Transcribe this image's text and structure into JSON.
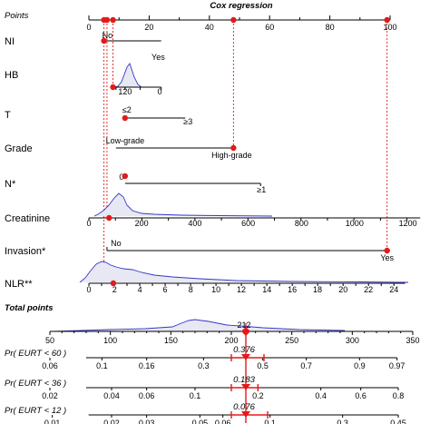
{
  "chart_data": {
    "type": "nomogram",
    "title": "Cox regression",
    "points_scale": {
      "label": "Points",
      "ticks": [
        0,
        20,
        40,
        60,
        80,
        100
      ]
    },
    "variables": [
      {
        "name": "NI",
        "levels": [
          {
            "label": "No",
            "points": 5
          },
          {
            "label": "Yes",
            "points": 12
          }
        ]
      },
      {
        "name": "HB",
        "ticks": [
          {
            "label": "120",
            "points": 6
          },
          {
            "label": "0",
            "points": 12
          }
        ]
      },
      {
        "name": "T",
        "levels": [
          {
            "label": "≤2",
            "points": 6
          },
          {
            "label": "≥3",
            "points": 30
          }
        ]
      },
      {
        "name": "Grade",
        "levels": [
          {
            "label": "Low-grade",
            "points": 9
          },
          {
            "label": "High-grade",
            "points": 48
          }
        ]
      },
      {
        "name": "N*",
        "levels": [
          {
            "label": "0",
            "points": 6
          },
          {
            "label": "≥1",
            "points": 57
          }
        ]
      },
      {
        "name": "Creatinine",
        "ticks": [
          {
            "label": "0",
            "points": 0
          },
          {
            "label": "200",
            "points": 17.5
          },
          {
            "label": "400",
            "points": 35.2
          },
          {
            "label": "600",
            "points": 52.9
          },
          {
            "label": "800",
            "points": 70.6
          },
          {
            "label": "1000",
            "points": 88.2
          },
          {
            "label": "1200",
            "points": 105.9
          }
        ],
        "selected_points": 6.7
      },
      {
        "name": "Invasion*",
        "levels": [
          {
            "label": "No",
            "points": 6
          },
          {
            "label": "Yes",
            "points": 99
          }
        ]
      },
      {
        "name": "NLR**",
        "ticks": [
          {
            "label": "0",
            "points": 0
          },
          {
            "label": "2",
            "points": 8.5
          },
          {
            "label": "4",
            "points": 16.9
          },
          {
            "label": "6",
            "points": 25.3
          },
          {
            "label": "8",
            "points": 33.8
          },
          {
            "label": "10",
            "points": 42.2
          },
          {
            "label": "12",
            "points": 50.6
          },
          {
            "label": "14",
            "points": 59.1
          },
          {
            "label": "16",
            "points": 67.5
          },
          {
            "label": "18",
            "points": 75.9
          },
          {
            "label": "20",
            "points": 84.4
          },
          {
            "label": "22",
            "points": 92.8
          },
          {
            "label": "24",
            "points": 101.3
          }
        ],
        "selected_value": 2
      }
    ],
    "selected_points_top": [
      5,
      6,
      8,
      48,
      99
    ],
    "total_points": {
      "label": "Total points",
      "ticks": [
        50,
        100,
        150,
        200,
        250,
        300,
        350
      ],
      "range": [
        50,
        350
      ],
      "value": 212,
      "value_label": "212"
    },
    "probability_axes": [
      {
        "label": "Pr( EURT < 60 )",
        "ticks": [
          {
            "label": "0.06",
            "total": 50
          },
          {
            "label": "0.1",
            "total": 93
          },
          {
            "label": "0.16",
            "total": 130
          },
          {
            "label": "0.3",
            "total": 177
          },
          {
            "label": "0.5",
            "total": 226
          },
          {
            "label": "0.7",
            "total": 262
          },
          {
            "label": "0.9",
            "total": 306
          },
          {
            "label": "0.97",
            "total": 337
          }
        ],
        "value": 0.376,
        "value_label": "0.376",
        "ci_total": [
          200,
          227
        ]
      },
      {
        "label": "Pr( EURT < 36 )",
        "ticks": [
          {
            "label": "0.02",
            "total": 50
          },
          {
            "label": "0.04",
            "total": 101
          },
          {
            "label": "0.06",
            "total": 130
          },
          {
            "label": "0.1",
            "total": 170
          },
          {
            "label": "0.2",
            "total": 222
          },
          {
            "label": "0.4",
            "total": 274
          },
          {
            "label": "0.6",
            "total": 307
          },
          {
            "label": "0.8",
            "total": 338
          }
        ],
        "value": 0.183,
        "value_label": "0.183",
        "ci_total": [
          200,
          222
        ]
      },
      {
        "label": "Pr( EURT < 12 )",
        "ticks": [
          {
            "label": "0.01",
            "total": 52
          },
          {
            "label": "0.02",
            "total": 101
          },
          {
            "label": "0.03",
            "total": 130
          },
          {
            "label": "0.05",
            "total": 174
          },
          {
            "label": "0.06",
            "total": 193
          },
          {
            "label": "0.1",
            "total": 232
          },
          {
            "label": "0.3",
            "total": 292
          },
          {
            "label": "0.45",
            "total": 338
          }
        ],
        "value": 0.076,
        "value_label": "0.076",
        "ci_total": [
          200,
          230
        ]
      }
    ],
    "grid": false,
    "legend": "none"
  }
}
